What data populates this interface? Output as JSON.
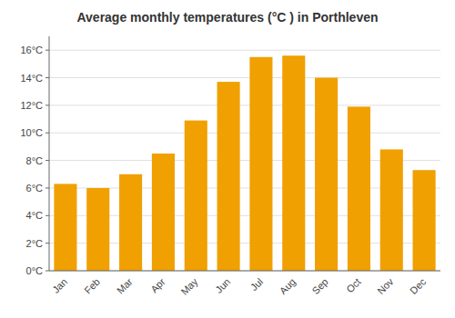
{
  "chart_data": {
    "type": "bar",
    "title": "Average monthly temperatures (°C ) in Porthleven",
    "categories": [
      "Jan",
      "Feb",
      "Mar",
      "Apr",
      "May",
      "Jun",
      "Jul",
      "Aug",
      "Sep",
      "Oct",
      "Nov",
      "Dec"
    ],
    "values": [
      6.3,
      6.0,
      7.0,
      8.5,
      10.9,
      13.7,
      15.5,
      15.6,
      14.0,
      11.9,
      8.8,
      7.3
    ],
    "color": "#F0A000",
    "ylim": [
      0,
      17
    ],
    "yticks": [
      {
        "value": 0,
        "label": "0°C"
      },
      {
        "value": 2,
        "label": "2°C"
      },
      {
        "value": 4,
        "label": "4°C"
      },
      {
        "value": 6,
        "label": "6°C"
      },
      {
        "value": 8,
        "label": "8°C"
      },
      {
        "value": 10,
        "label": "10°C"
      },
      {
        "value": 12,
        "label": "12°C"
      },
      {
        "value": 14,
        "label": "14°C"
      },
      {
        "value": 16,
        "label": "16°C"
      }
    ],
    "grid": true
  }
}
